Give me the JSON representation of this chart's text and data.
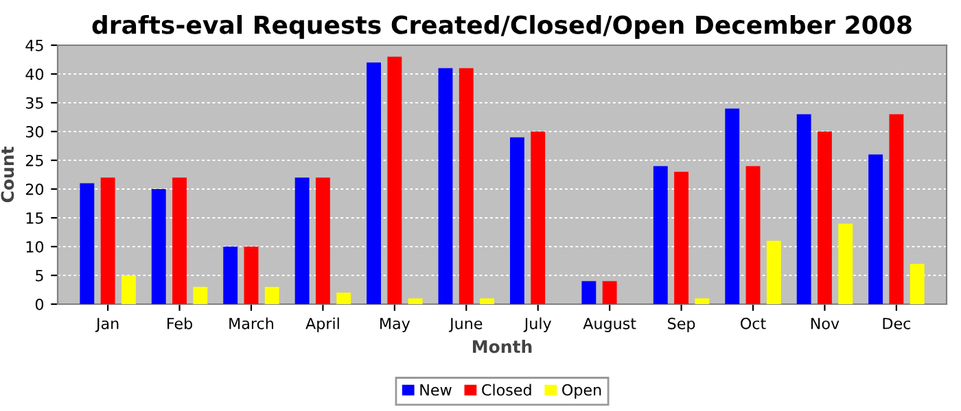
{
  "chart_data": {
    "type": "bar",
    "title": "drafts-eval Requests Created/Closed/Open December 2008",
    "xlabel": "Month",
    "ylabel": "Count",
    "categories": [
      "Jan",
      "Feb",
      "March",
      "April",
      "May",
      "June",
      "July",
      "August",
      "Sep",
      "Oct",
      "Nov",
      "Dec"
    ],
    "series": [
      {
        "name": "New",
        "color": "#0000ff",
        "values": [
          21,
          20,
          10,
          22,
          42,
          41,
          29,
          4,
          24,
          34,
          33,
          26
        ]
      },
      {
        "name": "Closed",
        "color": "#ff0000",
        "values": [
          22,
          22,
          10,
          22,
          43,
          41,
          30,
          4,
          23,
          24,
          30,
          33
        ]
      },
      {
        "name": "Open",
        "color": "#ffff00",
        "values": [
          5,
          3,
          3,
          2,
          1,
          1,
          0,
          0,
          1,
          11,
          14,
          7
        ]
      }
    ],
    "ylim": [
      0,
      45
    ],
    "yticks": [
      0,
      5,
      10,
      15,
      20,
      25,
      30,
      35,
      40,
      45
    ],
    "grid": "y",
    "legend": "bottom"
  }
}
